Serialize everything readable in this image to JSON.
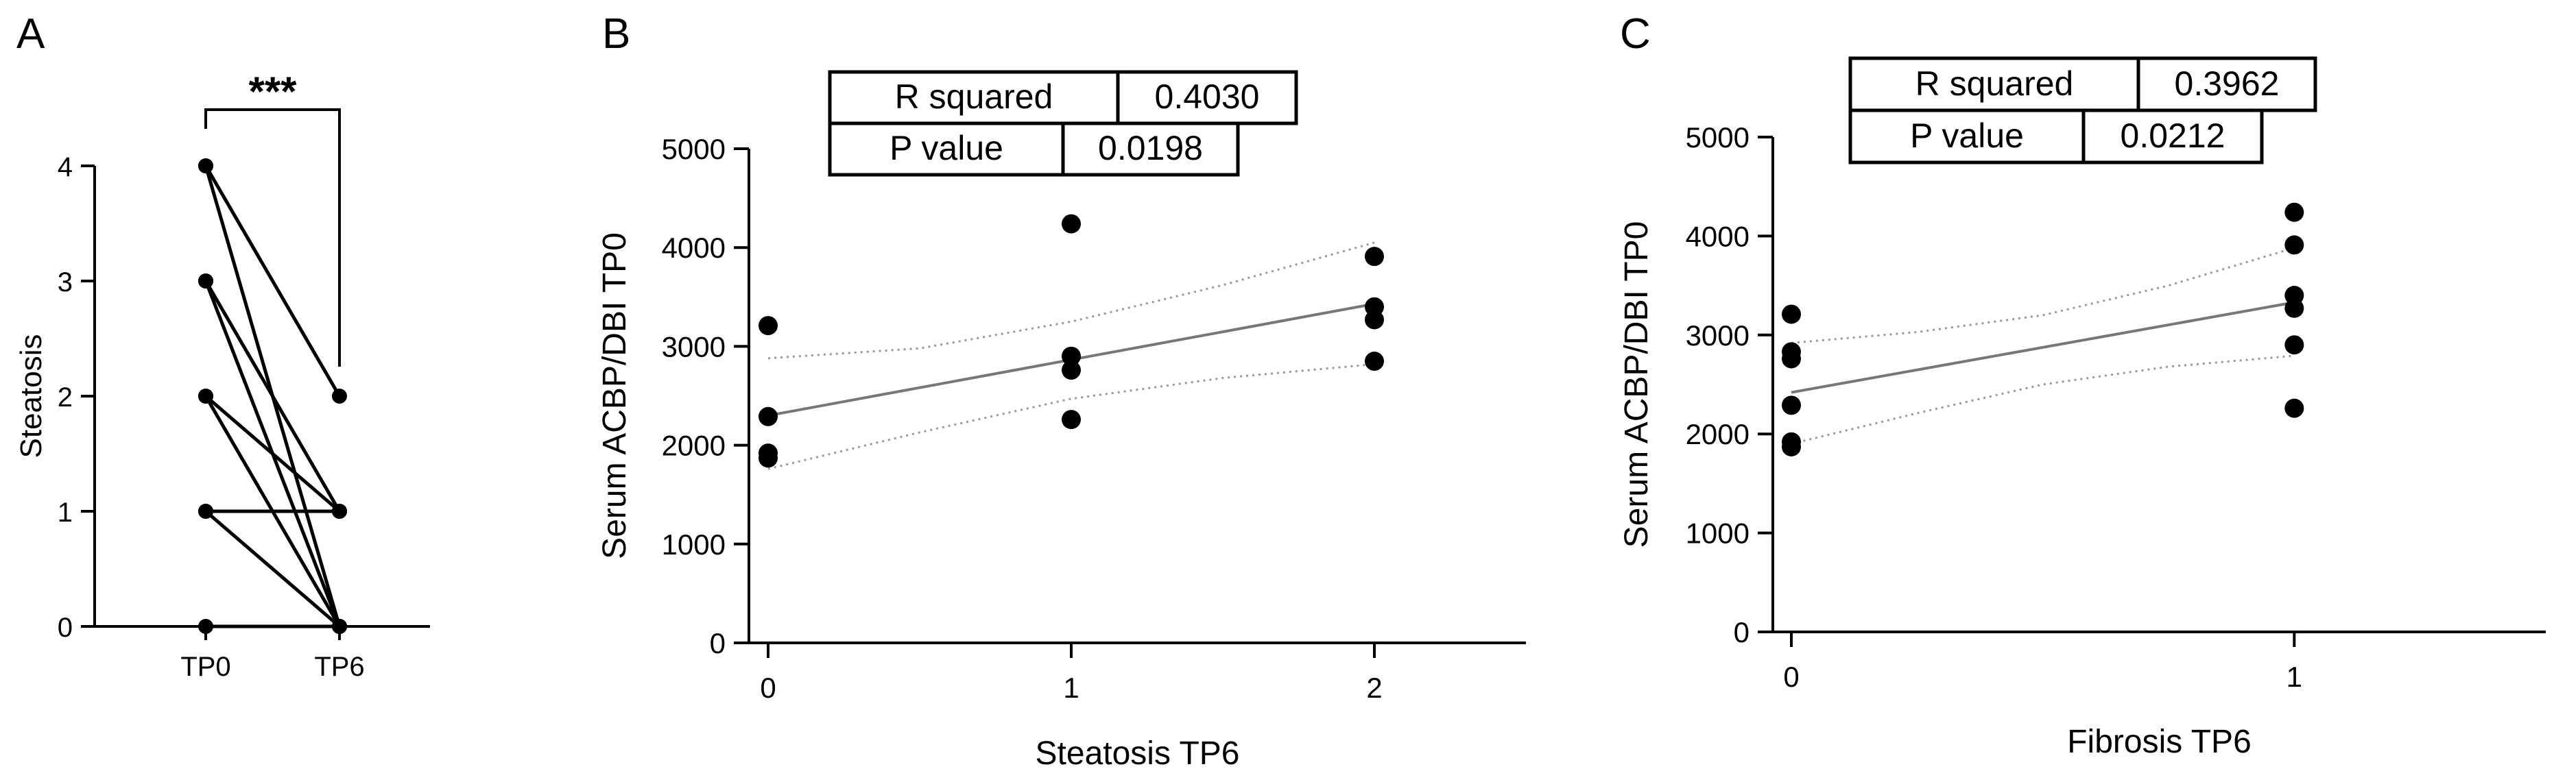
{
  "panels": {
    "a": {
      "letter": "A"
    },
    "b": {
      "letter": "B"
    },
    "c": {
      "letter": "C"
    }
  },
  "chart_data": [
    {
      "id": "a",
      "type": "line",
      "subtype": "paired-before-after",
      "title": "",
      "xlabel": "",
      "ylabel": "Steatosis",
      "categories": [
        "TP0",
        "TP6"
      ],
      "ylim": [
        0,
        4
      ],
      "yticks": [
        "0",
        "1",
        "2",
        "3",
        "4"
      ],
      "significance": "***",
      "pairs": [
        [
          4,
          2
        ],
        [
          4,
          0
        ],
        [
          3,
          1
        ],
        [
          3,
          0
        ],
        [
          2,
          1
        ],
        [
          2,
          0
        ],
        [
          1,
          1
        ],
        [
          1,
          0
        ],
        [
          0,
          0
        ]
      ],
      "colors": {
        "line": "#000000",
        "marker": "#000000"
      }
    },
    {
      "id": "b",
      "type": "scatter",
      "subtype": "linear-regression-with-95ci",
      "title": "",
      "xlabel": "Steatosis TP6",
      "ylabel": "Serum ACBP/DBI TP0",
      "xlim": [
        0,
        2.5
      ],
      "ylim": [
        0,
        5000
      ],
      "xticks": [
        "0",
        "1",
        "2"
      ],
      "yticks": [
        "0",
        "1000",
        "2000",
        "3000",
        "4000",
        "5000"
      ],
      "points": [
        [
          0,
          3210
        ],
        [
          0,
          2290
        ],
        [
          0,
          1920
        ],
        [
          0,
          1870
        ],
        [
          1,
          4240
        ],
        [
          1,
          2900
        ],
        [
          1,
          2760
        ],
        [
          1,
          2260
        ],
        [
          2,
          3910
        ],
        [
          2,
          3400
        ],
        [
          2,
          3270
        ],
        [
          2,
          2850
        ]
      ],
      "fit": {
        "x0": 0,
        "y0": 2300,
        "x1": 2,
        "y1": 3430
      },
      "ci_lower": [
        [
          0,
          1760
        ],
        [
          0.5,
          2130
        ],
        [
          1,
          2470
        ],
        [
          1.5,
          2680
        ],
        [
          2,
          2820
        ]
      ],
      "ci_upper": [
        [
          0,
          2880
        ],
        [
          0.5,
          2980
        ],
        [
          1,
          3250
        ],
        [
          1.5,
          3620
        ],
        [
          2,
          4050
        ]
      ],
      "stats": [
        {
          "label": "R squared",
          "value": "0.4030"
        },
        {
          "label": "P value",
          "value": "0.0198"
        }
      ],
      "colors": {
        "marker": "#000000",
        "fit": "#777777",
        "ci": "#999999"
      }
    },
    {
      "id": "c",
      "type": "scatter",
      "subtype": "linear-regression-with-95ci",
      "title": "",
      "xlabel": "Fibrosis TP6",
      "ylabel": "Serum ACBP/DBI TP0",
      "xlim": [
        0,
        1.5
      ],
      "ylim": [
        0,
        5000
      ],
      "xticks": [
        "0",
        "1"
      ],
      "yticks": [
        "0",
        "1000",
        "2000",
        "3000",
        "4000",
        "5000"
      ],
      "points": [
        [
          0,
          3210
        ],
        [
          0,
          2830
        ],
        [
          0,
          2760
        ],
        [
          0,
          2290
        ],
        [
          0,
          1920
        ],
        [
          0,
          1870
        ],
        [
          1,
          4240
        ],
        [
          1,
          3910
        ],
        [
          1,
          3400
        ],
        [
          1,
          3270
        ],
        [
          1,
          2900
        ],
        [
          1,
          2260
        ]
      ],
      "fit": {
        "x0": 0,
        "y0": 2420,
        "x1": 1,
        "y1": 3330
      },
      "ci_lower": [
        [
          0,
          1900
        ],
        [
          0.25,
          2210
        ],
        [
          0.5,
          2500
        ],
        [
          0.75,
          2680
        ],
        [
          1,
          2790
        ]
      ],
      "ci_upper": [
        [
          0,
          2920
        ],
        [
          0.25,
          3030
        ],
        [
          0.5,
          3200
        ],
        [
          0.75,
          3500
        ],
        [
          1,
          3880
        ]
      ],
      "stats": [
        {
          "label": "R squared",
          "value": "0.3962"
        },
        {
          "label": "P value",
          "value": "0.0212"
        }
      ],
      "colors": {
        "marker": "#000000",
        "fit": "#777777",
        "ci": "#999999"
      }
    }
  ]
}
